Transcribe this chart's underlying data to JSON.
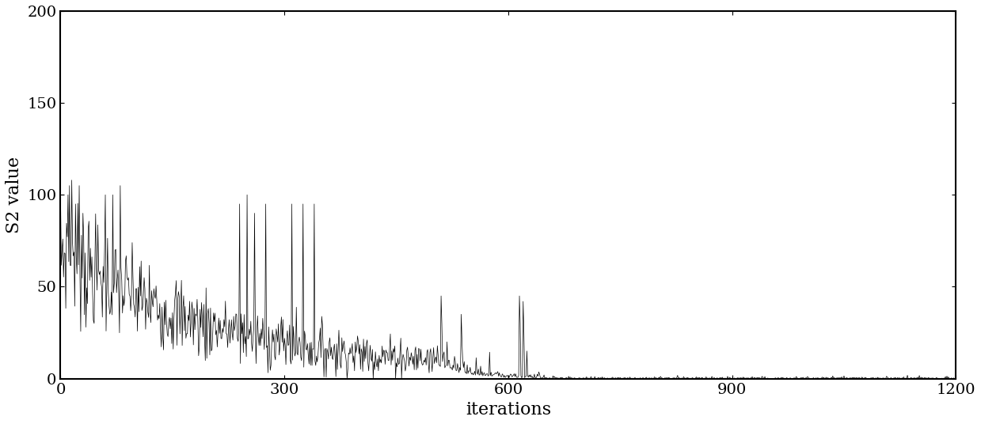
{
  "xlabel": "iterations",
  "ylabel": "S2 value",
  "xlim": [
    0,
    1200
  ],
  "ylim": [
    0,
    200
  ],
  "xticks": [
    0,
    300,
    600,
    900,
    1200
  ],
  "yticks": [
    0,
    50,
    100,
    150,
    200
  ],
  "line_color": "#000000",
  "linewidth": 0.5,
  "background_color": "#ffffff",
  "xlabel_fontsize": 16,
  "ylabel_fontsize": 16,
  "tick_fontsize": 14,
  "n_points": 1200,
  "seed": 7
}
